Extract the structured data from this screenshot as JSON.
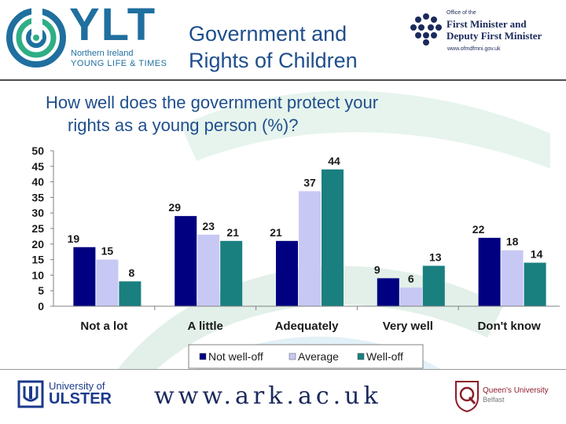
{
  "header": {
    "ylt_word": "YLT",
    "ylt_sub1": "Northern Ireland",
    "ylt_sub2": "YOUNG LIFE & TIMES",
    "title_line1": "Government and",
    "title_line2": "Rights of Children",
    "ofmdfm_small": "Office of the",
    "ofmdfm_line1": "First Minister and",
    "ofmdfm_line2": "Deputy First Minister",
    "ofmdfm_url": "www.ofmdfmni.gov.uk"
  },
  "question": {
    "line1": "How well does the government protect your",
    "line2": "rights as a young person (%)?"
  },
  "chart_data": {
    "type": "bar",
    "categories": [
      "Not a lot",
      "A little",
      "Adequately",
      "Very well",
      "Don't know"
    ],
    "series": [
      {
        "name": "Not well-off",
        "color": "#000080",
        "values": [
          19,
          29,
          21,
          9,
          22
        ]
      },
      {
        "name": "Average",
        "color": "#c8c8f5",
        "values": [
          15,
          23,
          37,
          6,
          18
        ]
      },
      {
        "name": "Well-off",
        "color": "#1a7f7f",
        "values": [
          8,
          21,
          44,
          13,
          14
        ]
      }
    ],
    "ylim": [
      0,
      50
    ],
    "yticks": [
      "0",
      "5",
      "10",
      "15",
      "20",
      "25",
      "30",
      "35",
      "40",
      "45",
      "50"
    ],
    "legend_position": "bottom",
    "grid": false
  },
  "footer": {
    "uu_line1": "University of",
    "uu_line2": "ULSTER",
    "ark": "www.ark.ac.uk",
    "qub_line1": "Queen's University",
    "qub_line2": "Belfast"
  }
}
